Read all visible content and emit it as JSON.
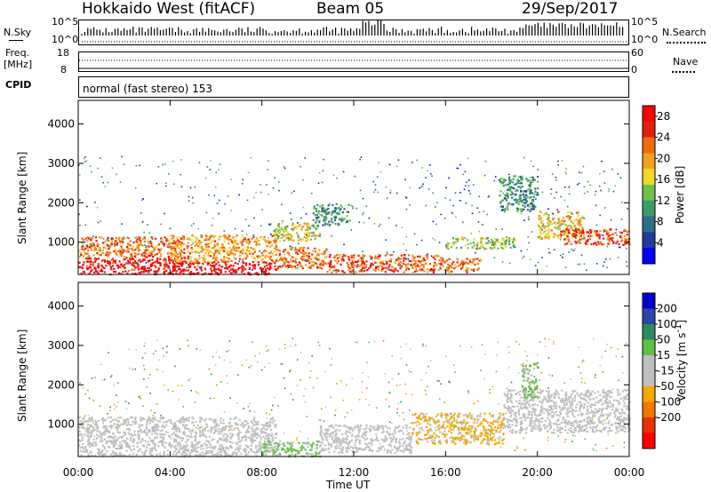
{
  "header": {
    "station": "Hokkaido West (fitACF)",
    "beam": "Beam 05",
    "date": "29/Sep/2017"
  },
  "noise_panel": {
    "left_label": "N.Sky",
    "right_label": "N.Search",
    "ytick_top": "10^5",
    "ytick_bottom": "10^0"
  },
  "freq_panel": {
    "left_label_line1": "Freq.",
    "left_label_line2": "[MHz]",
    "right_label": "Nave",
    "left_tick_top": "18",
    "left_tick_bottom": "8",
    "right_tick_top": "60",
    "right_tick_bottom": "0"
  },
  "cpid_panel": {
    "label": "CPID",
    "text": "normal (fast stereo) 153"
  },
  "xaxis": {
    "label": "Time UT",
    "ticks": [
      "00:00",
      "04:00",
      "08:00",
      "12:00",
      "16:00",
      "20:00",
      "00:00"
    ]
  },
  "colors": {
    "power_scale": [
      "#0000ff",
      "#1e3c9a",
      "#2f6e8a",
      "#3a9a6a",
      "#6fc24a",
      "#f2d92a",
      "#f5a020",
      "#f06a10",
      "#e02010",
      "#ff0000"
    ],
    "velocity_scale": [
      "#0000cc",
      "#2848a8",
      "#2e8a60",
      "#60c040",
      "#c0c0c0",
      "#c0c0c0",
      "#f5a800",
      "#f07800",
      "#e83000",
      "#ff0000"
    ]
  },
  "chart_data": [
    {
      "type": "heatmap",
      "name": "power",
      "xlabel": "Time UT",
      "ylabel": "Slant Range [km]",
      "xlim": [
        0,
        24
      ],
      "ylim": [
        180,
        4600
      ],
      "yticks": [
        "1000",
        "2000",
        "3000",
        "4000"
      ],
      "colorbar": {
        "label": "Power [dB]",
        "ticks": [
          "4",
          "8",
          "12",
          "16",
          "20",
          "24",
          "28"
        ],
        "range": [
          0,
          30
        ]
      },
      "features": [
        {
          "t0": 0.0,
          "t1": 4.6,
          "r0": 200,
          "r1": 620,
          "level": 28
        },
        {
          "t0": 0.0,
          "t1": 4.6,
          "r0": 620,
          "r1": 1150,
          "level": 22
        },
        {
          "t0": 4.0,
          "t1": 8.6,
          "r0": 200,
          "r1": 520,
          "level": 29
        },
        {
          "t0": 4.0,
          "t1": 8.6,
          "r0": 520,
          "r1": 1200,
          "level": 20
        },
        {
          "t0": 8.6,
          "t1": 10.8,
          "r0": 350,
          "r1": 900,
          "level": 22
        },
        {
          "t0": 8.5,
          "t1": 10.5,
          "r0": 1050,
          "r1": 1500,
          "level": 16
        },
        {
          "t0": 10.2,
          "t1": 11.8,
          "r0": 1450,
          "r1": 2000,
          "level": 10
        },
        {
          "t0": 10.8,
          "t1": 16.0,
          "r0": 250,
          "r1": 700,
          "level": 24
        },
        {
          "t0": 16.0,
          "t1": 17.5,
          "r0": 250,
          "r1": 600,
          "level": 22
        },
        {
          "t0": 16.0,
          "t1": 19.0,
          "r0": 850,
          "r1": 1150,
          "level": 14
        },
        {
          "t0": 18.3,
          "t1": 20.0,
          "r0": 1800,
          "r1": 2700,
          "level": 10
        },
        {
          "t0": 20.0,
          "t1": 22.0,
          "r0": 1100,
          "r1": 1800,
          "level": 18
        },
        {
          "t0": 21.0,
          "t1": 24.0,
          "r0": 950,
          "r1": 1350,
          "level": 24
        }
      ]
    },
    {
      "type": "heatmap",
      "name": "velocity",
      "xlabel": "Time UT",
      "ylabel": "Slant Range [km]",
      "xlim": [
        0,
        24
      ],
      "ylim": [
        180,
        4600
      ],
      "yticks": [
        "1000",
        "2000",
        "3000",
        "4000"
      ],
      "colorbar": {
        "label": "Velocity [m s^-1]",
        "ticks": [
          "200",
          "100",
          "50",
          "15",
          "-15",
          "-50",
          "-100",
          "-200"
        ],
        "range": [
          -250,
          250
        ]
      },
      "features": [
        {
          "t0": 0.0,
          "t1": 8.6,
          "r0": 200,
          "r1": 1200,
          "level": 0
        },
        {
          "t0": 8.0,
          "t1": 10.5,
          "r0": 200,
          "r1": 600,
          "level": 60
        },
        {
          "t0": 10.5,
          "t1": 14.5,
          "r0": 300,
          "r1": 1000,
          "level": 0
        },
        {
          "t0": 14.5,
          "t1": 18.5,
          "r0": 500,
          "r1": 1300,
          "level": -60
        },
        {
          "t0": 18.5,
          "t1": 24.0,
          "r0": 800,
          "r1": 1900,
          "level": 0
        },
        {
          "t0": 19.3,
          "t1": 20.0,
          "r0": 1700,
          "r1": 2600,
          "level": 60
        }
      ]
    }
  ]
}
